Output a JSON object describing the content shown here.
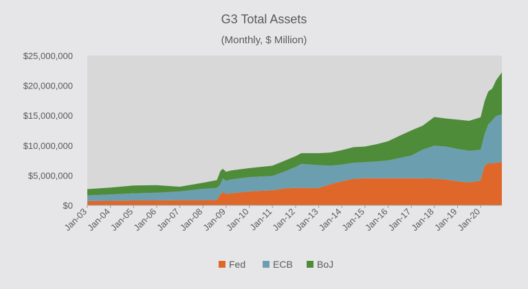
{
  "chart_data": {
    "type": "area",
    "stacked": true,
    "title": "G3 Total Assets",
    "subtitle": "(Monthly, $ Million)",
    "xlabel": "",
    "ylabel": "",
    "x_tick_labels": [
      "Jan-03",
      "Jan-04",
      "Jan-05",
      "Jan-06",
      "Jan-07",
      "Jan-08",
      "Jan-09",
      "Jan-10",
      "Jan-11",
      "Jan-12",
      "Jan-13",
      "Jan-14",
      "Jan-15",
      "Jan-16",
      "Jan-17",
      "Jan-18",
      "Jan-19",
      "Jan-20"
    ],
    "y_tick_labels": [
      "$0",
      "$5,000,000",
      "$10,000,000",
      "$15,000,000",
      "$20,000,000",
      "$25,000,000"
    ],
    "ylim": [
      0,
      25000000
    ],
    "xlim": [
      2003.0,
      2020.917
    ],
    "grid": false,
    "legend_position": "bottom",
    "colors": {
      "Fed": "#e0672a",
      "ECB": "#6b9fb0",
      "BoJ": "#4e8c3a",
      "plot_bg": "#d8d8d8",
      "page_bg": "#e6e6e8"
    },
    "x": [
      2003.0,
      2004.0,
      2005.0,
      2006.0,
      2007.0,
      2008.0,
      2008.6,
      2008.75,
      2008.85,
      2009.0,
      2009.2,
      2010.0,
      2011.0,
      2011.5,
      2012.0,
      2012.25,
      2013.0,
      2013.5,
      2014.0,
      2014.5,
      2015.0,
      2015.5,
      2016.0,
      2016.5,
      2017.0,
      2017.5,
      2018.0,
      2018.5,
      2019.0,
      2019.5,
      2019.83,
      2020.0,
      2020.17,
      2020.33,
      2020.5,
      2020.67,
      2020.917
    ],
    "series": [
      {
        "name": "Fed",
        "values": [
          700000,
          750000,
          800000,
          800000,
          850000,
          850000,
          900000,
          1800000,
          2200000,
          1900000,
          2000000,
          2300000,
          2500000,
          2800000,
          2900000,
          2900000,
          2900000,
          3500000,
          4000000,
          4400000,
          4500000,
          4500000,
          4500000,
          4500000,
          4500000,
          4500000,
          4450000,
          4300000,
          4000000,
          3800000,
          4000000,
          4200000,
          6600000,
          7000000,
          7000000,
          7100000,
          7200000
        ]
      },
      {
        "name": "ECB",
        "values": [
          950000,
          1050000,
          1200000,
          1300000,
          1450000,
          1900000,
          2000000,
          1700000,
          2300000,
          2200000,
          2300000,
          2400000,
          2400000,
          2800000,
          3500000,
          4000000,
          3800000,
          3100000,
          2800000,
          2700000,
          2700000,
          2800000,
          3000000,
          3400000,
          3800000,
          4800000,
          5500000,
          5500000,
          5400000,
          5300000,
          5200000,
          5100000,
          5300000,
          6500000,
          7200000,
          7800000,
          8000000
        ]
      },
      {
        "name": "BoJ",
        "values": [
          1050000,
          1150000,
          1300000,
          1250000,
          800000,
          1000000,
          1300000,
          2200000,
          1600000,
          1500000,
          1500000,
          1500000,
          1700000,
          1800000,
          1800000,
          1800000,
          2000000,
          2200000,
          2400000,
          2600000,
          2600000,
          2900000,
          3200000,
          3700000,
          4200000,
          4000000,
          4800000,
          4700000,
          4900000,
          5000000,
          5300000,
          5400000,
          5500000,
          5500000,
          5300000,
          6000000,
          7000000
        ]
      }
    ]
  }
}
